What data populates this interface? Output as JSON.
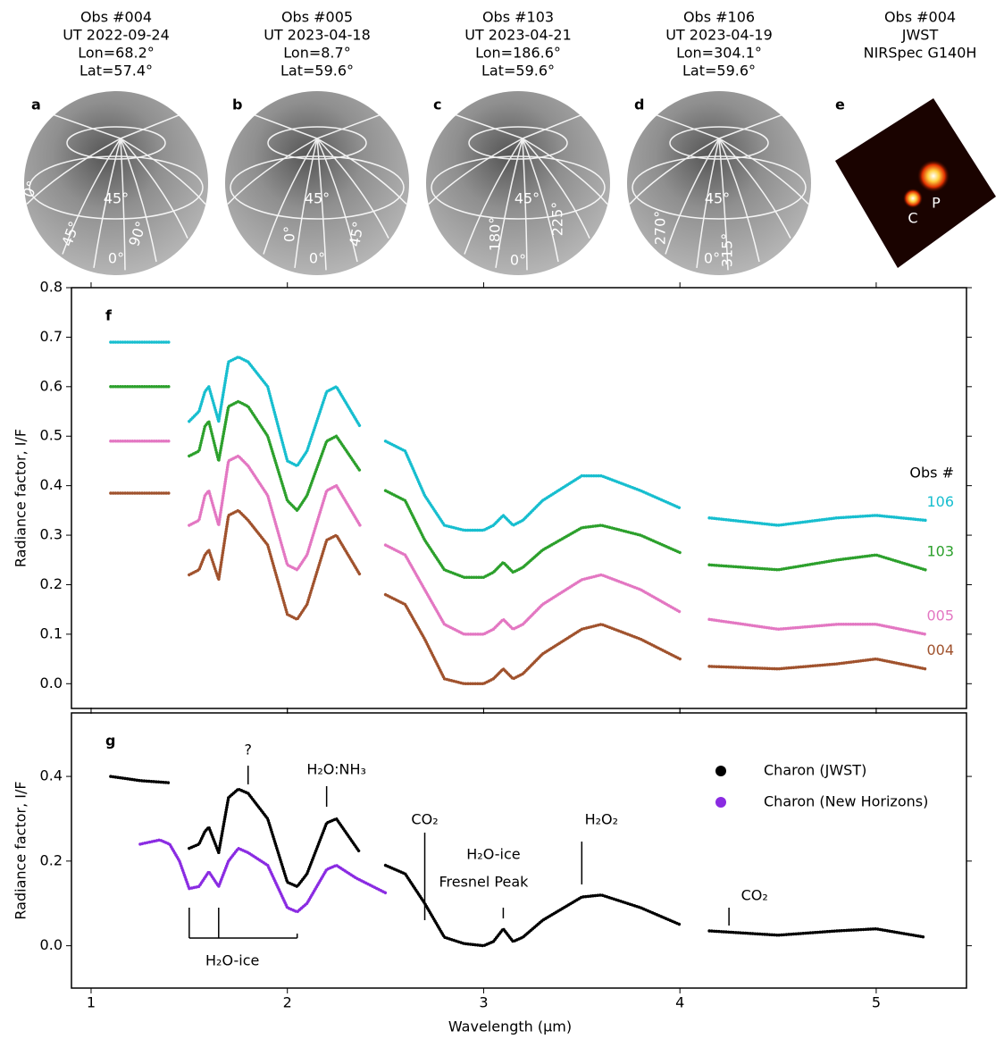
{
  "panels": [
    {
      "letter": "a",
      "lines": [
        "Obs #004",
        "UT 2022-09-24",
        "Lon=68.2°",
        "Lat=57.4°"
      ],
      "labels": [
        "0°",
        "45°",
        "45°",
        "90°",
        "0°"
      ]
    },
    {
      "letter": "b",
      "lines": [
        "Obs #005",
        "UT 2023-04-18",
        "Lon=8.7°",
        "Lat=59.6°"
      ],
      "labels": [
        "45°",
        "0°",
        "45°",
        "0°"
      ]
    },
    {
      "letter": "c",
      "lines": [
        "Obs #103",
        "UT 2023-04-21",
        "Lon=186.6°",
        "Lat=59.6°"
      ],
      "labels": [
        "45°",
        "180°",
        "225°",
        "0°"
      ]
    },
    {
      "letter": "d",
      "lines": [
        "Obs #106",
        "UT 2023-04-19",
        "Lon=304.1°",
        "Lat=59.6°"
      ],
      "labels": [
        "45°",
        "270°",
        "315°",
        "0°"
      ]
    },
    {
      "letter": "e",
      "lines": [
        "Obs #004",
        "JWST",
        "NIRSpec G140H"
      ],
      "labels": [
        "C",
        "P"
      ]
    }
  ],
  "chart_data": [
    {
      "type": "line",
      "panel_label": "f",
      "ylabel": "Radiance factor, I/F",
      "legend_title": "Obs #",
      "legend": "right",
      "xlim": [
        0.9,
        5.46
      ],
      "xticks": [
        1,
        2,
        3,
        4,
        5
      ],
      "ylim": [
        -0.05,
        0.8
      ],
      "yticks": [
        {
          "value": 0,
          "label": "0.0"
        },
        0.1,
        0.2,
        0.3,
        0.4,
        0.5,
        0.6,
        0.7,
        0.8
      ],
      "x": [
        1.1,
        1.25,
        1.4,
        1.45,
        1.5,
        1.55,
        1.58,
        1.6,
        1.65,
        1.7,
        1.75,
        1.8,
        1.9,
        2.0,
        2.05,
        2.1,
        2.2,
        2.25,
        2.37,
        2.43,
        2.5,
        2.6,
        2.7,
        2.8,
        2.9,
        3.0,
        3.05,
        3.1,
        3.15,
        3.2,
        3.3,
        3.5,
        3.6,
        3.8,
        4.0,
        4.07,
        4.15,
        4.5,
        4.8,
        5.0,
        5.25
      ],
      "series": [
        {
          "name": "106",
          "color": "#17becf",
          "values": [
            0.69,
            0.69,
            0.69,
            null,
            0.53,
            0.55,
            0.59,
            0.6,
            0.53,
            0.65,
            0.66,
            0.65,
            0.6,
            0.45,
            0.44,
            0.47,
            0.59,
            0.6,
            0.52,
            null,
            0.49,
            0.47,
            0.38,
            0.32,
            0.31,
            0.31,
            0.32,
            0.34,
            0.32,
            0.33,
            0.37,
            0.42,
            0.42,
            0.39,
            0.355,
            null,
            0.335,
            0.32,
            0.335,
            0.34,
            0.33
          ]
        },
        {
          "name": "103",
          "color": "#2ca02c",
          "values": [
            0.6,
            0.6,
            0.6,
            null,
            0.46,
            0.47,
            0.52,
            0.53,
            0.45,
            0.56,
            0.57,
            0.56,
            0.5,
            0.37,
            0.35,
            0.38,
            0.49,
            0.5,
            0.43,
            null,
            0.39,
            0.37,
            0.29,
            0.23,
            0.215,
            0.215,
            0.225,
            0.245,
            0.225,
            0.235,
            0.27,
            0.315,
            0.32,
            0.3,
            0.265,
            null,
            0.24,
            0.23,
            0.25,
            0.26,
            0.23
          ]
        },
        {
          "name": "005",
          "color": "#e377c2",
          "values": [
            0.49,
            0.49,
            0.49,
            null,
            0.32,
            0.33,
            0.38,
            0.39,
            0.32,
            0.45,
            0.46,
            0.44,
            0.38,
            0.24,
            0.23,
            0.26,
            0.39,
            0.4,
            0.32,
            null,
            0.28,
            0.26,
            0.19,
            0.12,
            0.1,
            0.1,
            0.11,
            0.13,
            0.11,
            0.12,
            0.16,
            0.21,
            0.22,
            0.19,
            0.145,
            null,
            0.13,
            0.11,
            0.12,
            0.12,
            0.1
          ]
        },
        {
          "name": "004",
          "color": "#a0522d",
          "values": [
            0.385,
            0.385,
            0.385,
            null,
            0.22,
            0.23,
            0.26,
            0.27,
            0.21,
            0.34,
            0.35,
            0.33,
            0.28,
            0.14,
            0.13,
            0.16,
            0.29,
            0.3,
            0.22,
            null,
            0.18,
            0.16,
            0.09,
            0.01,
            0.0,
            0.0,
            0.01,
            0.03,
            0.01,
            0.02,
            0.06,
            0.11,
            0.12,
            0.09,
            0.05,
            null,
            0.035,
            0.03,
            0.04,
            0.05,
            0.03
          ]
        }
      ]
    },
    {
      "type": "line",
      "panel_label": "g",
      "ylabel": "Radiance factor, I/F",
      "xlabel": "Wavelength (µm)",
      "legend": "upper right",
      "xlim": [
        0.9,
        5.46
      ],
      "xticks": [
        1,
        2,
        3,
        4,
        5
      ],
      "ylim": [
        -0.1,
        0.55
      ],
      "yticks": [
        {
          "value": 0,
          "label": "0.0"
        },
        0.2,
        0.4
      ],
      "series": [
        {
          "name": "Charon (JWST)",
          "color": "#000000",
          "x": [
            1.1,
            1.25,
            1.4,
            1.45,
            1.5,
            1.55,
            1.58,
            1.6,
            1.65,
            1.7,
            1.75,
            1.8,
            1.9,
            2.0,
            2.05,
            2.1,
            2.2,
            2.25,
            2.37,
            2.43,
            2.5,
            2.6,
            2.7,
            2.8,
            2.9,
            3.0,
            3.05,
            3.1,
            3.15,
            3.2,
            3.3,
            3.5,
            3.6,
            3.8,
            4.0,
            4.07,
            4.15,
            4.5,
            4.8,
            5.0,
            5.25
          ],
          "values": [
            0.4,
            0.39,
            0.385,
            null,
            0.23,
            0.24,
            0.27,
            0.28,
            0.22,
            0.35,
            0.37,
            0.36,
            0.3,
            0.15,
            0.14,
            0.17,
            0.29,
            0.3,
            0.22,
            null,
            0.19,
            0.17,
            0.1,
            0.02,
            0.005,
            0.0,
            0.01,
            0.04,
            0.01,
            0.02,
            0.06,
            0.115,
            0.12,
            0.09,
            0.05,
            null,
            0.035,
            0.025,
            0.035,
            0.04,
            0.02
          ]
        },
        {
          "name": "Charon (New Horizons)",
          "color": "#8a2be2",
          "x": [
            1.25,
            1.35,
            1.4,
            1.45,
            1.5,
            1.55,
            1.6,
            1.65,
            1.7,
            1.75,
            1.8,
            1.9,
            2.0,
            2.05,
            2.1,
            2.2,
            2.25,
            2.35,
            2.5
          ],
          "values": [
            0.24,
            0.25,
            0.24,
            0.2,
            0.135,
            0.14,
            0.175,
            0.14,
            0.2,
            0.23,
            0.22,
            0.19,
            0.09,
            0.08,
            0.1,
            0.18,
            0.19,
            0.16,
            0.125
          ]
        }
      ],
      "annotations": [
        "?",
        "H₂O:NH₃",
        "CO₂",
        "H₂O-ice",
        "Fresnel Peak",
        "H₂O₂",
        "CO₂",
        "H₂O-ice"
      ]
    }
  ]
}
